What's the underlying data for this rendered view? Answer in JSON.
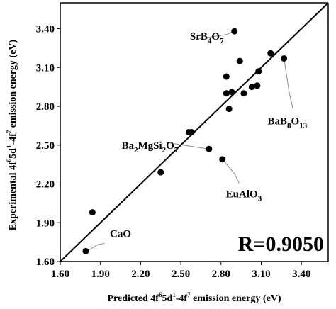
{
  "chart_data": {
    "type": "scatter",
    "xlabel": "Predicted  4f⁶5d¹-4f⁷ emission energy (eV)",
    "ylabel": "Experimental  4f⁶5d¹-4f⁷ emission energy (eV)",
    "xlabel_parts": [
      {
        "t": "Predicted  4f",
        "s": "n"
      },
      {
        "t": "6",
        "s": "sup"
      },
      {
        "t": "5d",
        "s": "n"
      },
      {
        "t": "1",
        "s": "sup"
      },
      {
        "t": "-4f",
        "s": "n"
      },
      {
        "t": "7",
        "s": "sup"
      },
      {
        "t": " emission energy (eV)",
        "s": "n"
      }
    ],
    "ylabel_parts": [
      {
        "t": "Experimental  4f",
        "s": "n"
      },
      {
        "t": "6",
        "s": "sup"
      },
      {
        "t": "5d",
        "s": "n"
      },
      {
        "t": "1",
        "s": "sup"
      },
      {
        "t": "-4f",
        "s": "n"
      },
      {
        "t": "7",
        "s": "sup"
      },
      {
        "t": " emission energy (eV)",
        "s": "n"
      }
    ],
    "xlim": [
      1.6,
      3.6
    ],
    "ylim": [
      1.6,
      3.6
    ],
    "xticks": [
      "1.60",
      "1.90",
      "2.20",
      "2.50",
      "2.80",
      "3.10",
      "3.40"
    ],
    "yticks": [
      "1.60",
      "1.90",
      "2.20",
      "2.50",
      "2.80",
      "3.10",
      "3.40"
    ],
    "grid": false,
    "fit_line": {
      "x": [
        1.6,
        3.6
      ],
      "y": [
        1.6,
        3.6
      ]
    },
    "points": [
      {
        "x": 1.79,
        "y": 1.68
      },
      {
        "x": 1.84,
        "y": 1.98
      },
      {
        "x": 2.35,
        "y": 2.29
      },
      {
        "x": 2.56,
        "y": 2.6
      },
      {
        "x": 2.58,
        "y": 2.6
      },
      {
        "x": 2.71,
        "y": 2.47
      },
      {
        "x": 2.81,
        "y": 2.39
      },
      {
        "x": 2.84,
        "y": 3.03
      },
      {
        "x": 2.84,
        "y": 2.9
      },
      {
        "x": 2.86,
        "y": 2.78
      },
      {
        "x": 2.88,
        "y": 2.91
      },
      {
        "x": 2.9,
        "y": 3.38
      },
      {
        "x": 2.94,
        "y": 3.15
      },
      {
        "x": 2.97,
        "y": 2.9
      },
      {
        "x": 3.03,
        "y": 2.95
      },
      {
        "x": 3.07,
        "y": 2.96
      },
      {
        "x": 3.08,
        "y": 3.07
      },
      {
        "x": 3.17,
        "y": 3.21
      },
      {
        "x": 3.27,
        "y": 3.17
      }
    ],
    "annotations": [
      {
        "parts": [
          {
            "t": "SrB",
            "s": "n"
          },
          {
            "t": "4",
            "s": "sub"
          },
          {
            "t": "O",
            "s": "n"
          },
          {
            "t": "7",
            "s": "sub"
          }
        ],
        "text_at": [
          2.82,
          3.315
        ],
        "anchor": "end",
        "leader": [
          [
            2.625,
            3.32
          ],
          [
            2.84,
            3.355
          ],
          [
            2.895,
            3.38
          ]
        ]
      },
      {
        "parts": [
          {
            "t": "BaB",
            "s": "n"
          },
          {
            "t": "8",
            "s": "sub"
          },
          {
            "t": "O",
            "s": "n"
          },
          {
            "t": "13",
            "s": "sub"
          }
        ],
        "text_at": [
          3.295,
          2.66
        ],
        "anchor": "middle",
        "leader": [
          [
            3.27,
            3.17
          ],
          [
            3.31,
            2.9
          ],
          [
            3.34,
            2.77
          ]
        ]
      },
      {
        "parts": [
          {
            "t": "Ba",
            "s": "n"
          },
          {
            "t": "2",
            "s": "sub"
          },
          {
            "t": "MgSi",
            "s": "n"
          },
          {
            "t": "2",
            "s": "sub"
          },
          {
            "t": "O",
            "s": "n"
          },
          {
            "t": "7",
            "s": "sub"
          }
        ],
        "text_at": [
          2.48,
          2.47
        ],
        "anchor": "end",
        "leader": [
          [
            2.39,
            2.52
          ],
          [
            2.71,
            2.47
          ]
        ]
      },
      {
        "parts": [
          {
            "t": "EuAlO",
            "s": "n"
          },
          {
            "t": "3",
            "s": "sub"
          }
        ],
        "text_at": [
          2.97,
          2.095
        ],
        "anchor": "middle",
        "leader": [
          [
            2.81,
            2.39
          ],
          [
            2.9,
            2.28
          ],
          [
            2.935,
            2.205
          ]
        ]
      },
      {
        "parts": [
          {
            "t": "CaO",
            "s": "n"
          }
        ],
        "text_at": [
          2.05,
          1.79
        ],
        "anchor": "middle",
        "leader": [
          [
            1.8,
            1.68
          ],
          [
            1.88,
            1.73
          ],
          [
            1.93,
            1.74
          ]
        ]
      }
    ],
    "r_label": "R=0.9050"
  }
}
